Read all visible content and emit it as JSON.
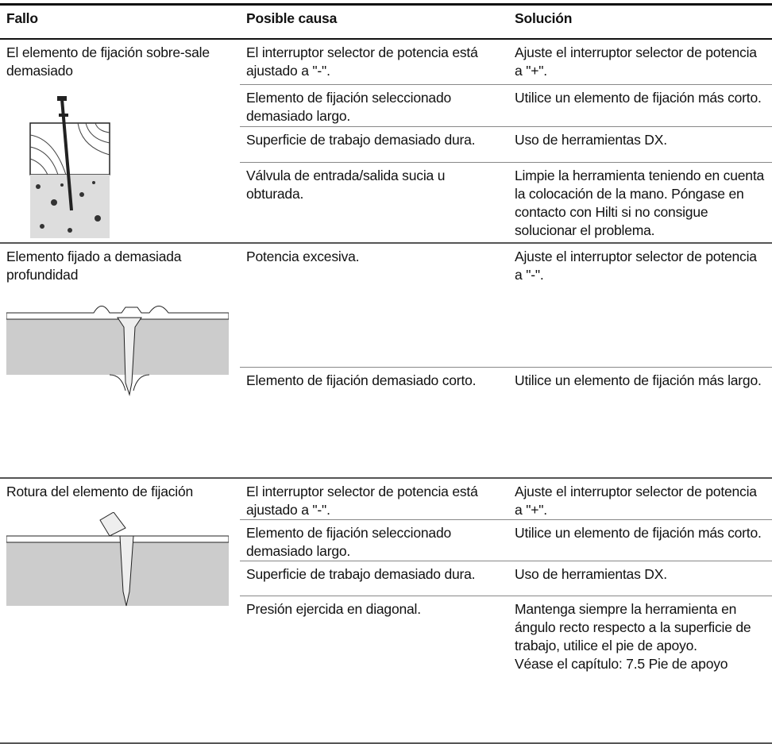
{
  "table": {
    "header": [
      "Fallo",
      "Posible causa",
      "Solución"
    ],
    "groups": [
      {
        "fault": "El elemento de fijación sobre-sale demasiado",
        "rows": [
          {
            "cause": "El interruptor selector de potencia está ajustado a \"-\".",
            "solution": "Ajuste el interruptor selector de potencia a \"+\"."
          },
          {
            "cause": "Elemento de fijación seleccionado demasiado largo.",
            "solution": "Utilice un elemento de fijación más corto."
          },
          {
            "cause": "Superficie de trabajo demasiado dura.",
            "solution": "Uso de herramientas DX."
          },
          {
            "cause": "Válvula de entrada/salida sucia u obturada.",
            "solution": "Limpie la herramienta teniendo en cuenta la colocación de la mano. Póngase en contacto con Hilti si no consigue solucionar el problema."
          }
        ]
      },
      {
        "fault": "Elemento fijado a demasiada profundidad",
        "rows": [
          {
            "cause": "Potencia excesiva.",
            "solution": "Ajuste el interruptor selector de potencia a \"-\"."
          },
          {
            "cause": "Elemento de fijación demasiado corto.",
            "solution": "Utilice un elemento de fijación más largo."
          }
        ]
      },
      {
        "fault": "Rotura del elemento de fijación",
        "rows": [
          {
            "cause": "El interruptor selector de potencia está ajustado a \"-\".",
            "solution": "Ajuste el interruptor selector de potencia a \"+\"."
          },
          {
            "cause": "Elemento de fijación seleccionado demasiado largo.",
            "solution": "Utilice un elemento de fijación más corto."
          },
          {
            "cause": "Superficie de trabajo demasiado dura.",
            "solution": "Uso de herramientas DX."
          },
          {
            "cause": "Presión ejercida en diagonal.",
            "solution": "Mantenga siempre la herramienta en ángulo recto respecto a la superficie de trabajo, utilice el pie de apoyo.",
            "note": "Véase el capítulo: 7.5 Pie de apoyo"
          }
        ]
      }
    ]
  }
}
